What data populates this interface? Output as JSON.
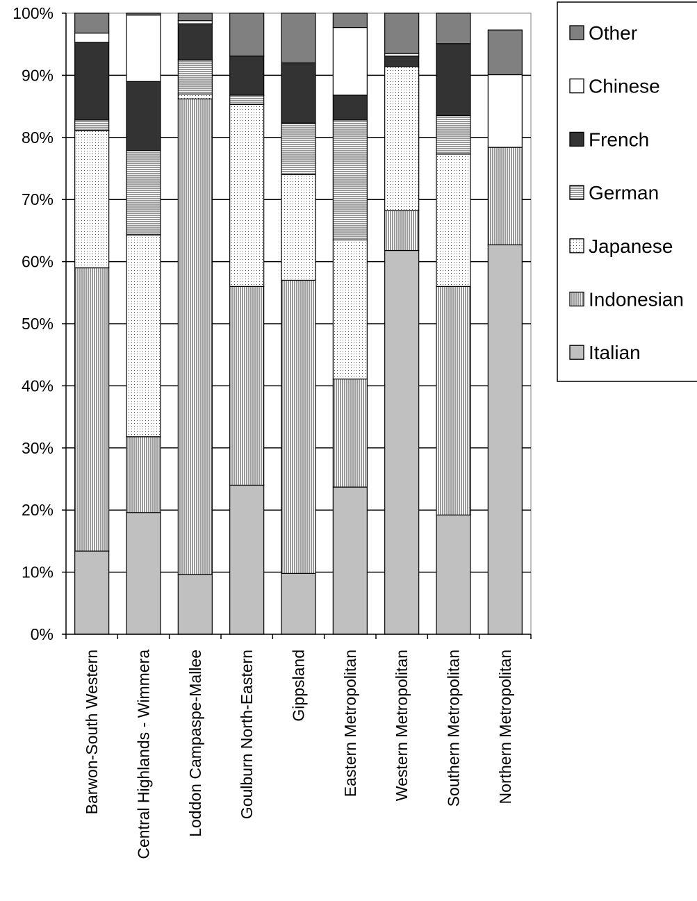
{
  "chart_data": {
    "type": "bar",
    "stacked": true,
    "normalized": true,
    "title": "",
    "xlabel": "",
    "ylabel": "",
    "ylim": [
      0,
      100
    ],
    "yticks": [
      "0%",
      "10%",
      "20%",
      "30%",
      "40%",
      "50%",
      "60%",
      "70%",
      "80%",
      "90%",
      "100%"
    ],
    "grid": "horizontal",
    "legend_position": "right",
    "categories": [
      "Barwon-South Western",
      "Central Highlands - Wimmera",
      "Loddon Campaspe-Mallee",
      "Goulburn North-Eastern",
      "Gippsland",
      "Eastern Metropolitan",
      "Western Metropolitan",
      "Southern Metropolitan",
      "Northern Metropolitan"
    ],
    "series": [
      {
        "name": "Italian",
        "color": "#c0c0c0",
        "pattern": "solid",
        "values": [
          13.4,
          19.6,
          9.6,
          24.0,
          9.8,
          23.7,
          61.8,
          19.2,
          62.7
        ]
      },
      {
        "name": "Indonesian",
        "color": "#ffffff",
        "pattern": "vertical",
        "values": [
          45.6,
          12.2,
          76.6,
          32.0,
          47.2,
          17.4,
          6.4,
          36.8,
          15.7
        ]
      },
      {
        "name": "Japanese",
        "color": "#ffffff",
        "pattern": "dots",
        "values": [
          22.1,
          32.5,
          0.8,
          29.3,
          17.0,
          22.4,
          23.2,
          21.3,
          0.0
        ]
      },
      {
        "name": "German",
        "color": "#ffffff",
        "pattern": "horizontal",
        "values": [
          1.7,
          13.6,
          5.5,
          1.5,
          8.3,
          19.3,
          0.0,
          6.2,
          0.0
        ]
      },
      {
        "name": "French",
        "color": "#333333",
        "pattern": "solid",
        "values": [
          12.5,
          11.1,
          5.8,
          6.3,
          9.7,
          4.0,
          1.7,
          11.6,
          0.0
        ]
      },
      {
        "name": "Chinese",
        "color": "#ffffff",
        "pattern": "solid",
        "values": [
          1.5,
          10.7,
          0.5,
          0.0,
          0.0,
          10.9,
          0.4,
          0.0,
          11.7
        ]
      },
      {
        "name": "Other",
        "color": "#808080",
        "pattern": "solid",
        "values": [
          3.2,
          0.3,
          1.2,
          6.9,
          8.0,
          2.3,
          6.5,
          4.9,
          7.2
        ]
      }
    ],
    "legend_order": [
      "Other",
      "Chinese",
      "French",
      "German",
      "Japanese",
      "Indonesian",
      "Italian"
    ]
  }
}
